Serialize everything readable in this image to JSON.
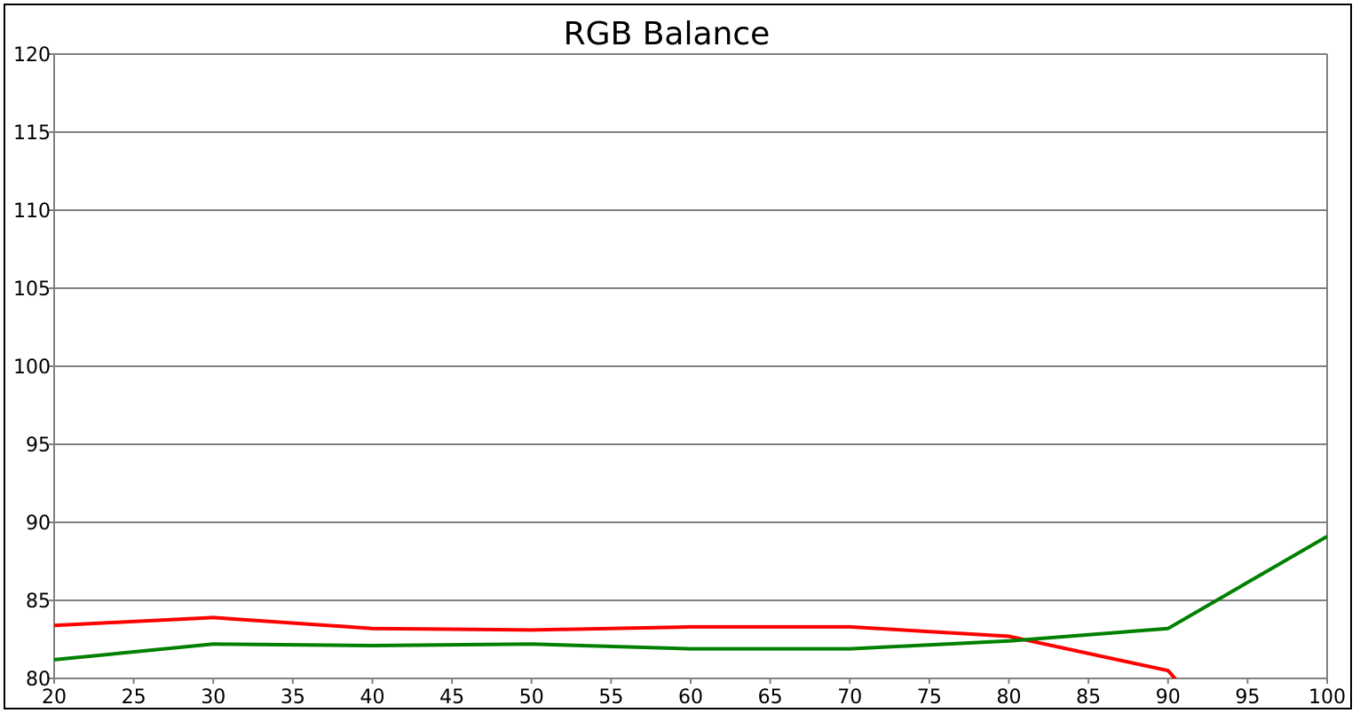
{
  "chart_data": {
    "type": "line",
    "title": "RGB Balance",
    "xlabel": "",
    "ylabel": "",
    "xlim": [
      20,
      100
    ],
    "ylim": [
      80,
      120
    ],
    "x_ticks": [
      20,
      25,
      30,
      35,
      40,
      45,
      50,
      55,
      60,
      65,
      70,
      75,
      80,
      85,
      90,
      95,
      100
    ],
    "y_ticks": [
      80,
      85,
      90,
      95,
      100,
      105,
      110,
      115,
      120
    ],
    "grid": "horizontal",
    "legend": "none",
    "series": [
      {
        "color": "#ff0000",
        "x": [
          20,
          30,
          40,
          50,
          60,
          70,
          80,
          90,
          90.6
        ],
        "values": [
          83.4,
          83.9,
          83.2,
          83.1,
          83.3,
          83.3,
          82.7,
          80.5,
          79.8
        ]
      },
      {
        "color": "#008000",
        "x": [
          20,
          30,
          40,
          50,
          60,
          70,
          80,
          90,
          100
        ],
        "values": [
          81.2,
          82.2,
          82.1,
          82.2,
          81.9,
          81.9,
          82.4,
          83.2,
          89.1
        ]
      }
    ]
  },
  "colors": {
    "grid": "#808080",
    "axis": "#808080",
    "frame": "#000000"
  }
}
